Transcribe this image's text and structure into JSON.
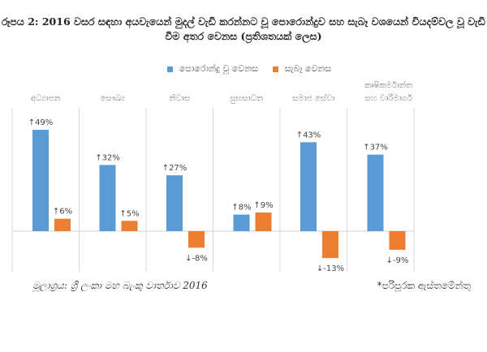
{
  "chart_data": {
    "type": "bar",
    "title": "රූපය 2: 2016 වසර සඳහා අයවැයෙන් මුදල් වැඩි කරන්නට වූ පොරොන්දුව සහ සැබෑ වශයෙන් වියදම්වල වූ වැඩි වීම අතර වෙනස (ප්‍රතිශතයක් ලෙස)",
    "categories": [
      "අධ්‍යාපන",
      "සෞඛ්‍ය",
      "නිවාස",
      "සුභසාධන",
      "සමාජ සේවා",
      "කෘෂිකර්මාන්ත සහ වාරිමාර්ග"
    ],
    "series": [
      {
        "name": "පොරොන්දු වූ වෙනස",
        "color": "#5b9bd5",
        "values": [
          49,
          32,
          27,
          8,
          43,
          37
        ],
        "labels": [
          "↑49%",
          "↑32%",
          "↑27%",
          "↑8%",
          "↑43%",
          "↑37%"
        ]
      },
      {
        "name": "සැබෑ වෙනස",
        "color": "#ed7d31",
        "values": [
          6,
          5,
          -8,
          9,
          -13,
          -9
        ],
        "labels": [
          "↑6%",
          "↑5%",
          "↓-8%",
          "↑9%",
          "↓-13%",
          "↓-9%"
        ]
      }
    ],
    "ylim": [
      -19,
      59
    ],
    "xlabel": "",
    "ylabel": "",
    "legend": "top-center"
  },
  "source": "මූලාශ්‍රය: ශ්‍රී ලංකා මහ බැංකු වාර්තාව 2016",
  "note": "*පරිපූරක ඇස්තමේන්තු"
}
